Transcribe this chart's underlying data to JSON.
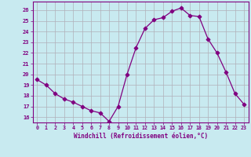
{
  "x": [
    0,
    1,
    2,
    3,
    4,
    5,
    6,
    7,
    8,
    9,
    10,
    11,
    12,
    13,
    14,
    15,
    16,
    17,
    18,
    19,
    20,
    21,
    22,
    23
  ],
  "y": [
    19.5,
    19.0,
    18.2,
    17.7,
    17.4,
    17.0,
    16.6,
    16.4,
    15.6,
    17.0,
    20.0,
    22.5,
    24.3,
    25.1,
    25.3,
    25.9,
    26.2,
    25.5,
    25.4,
    23.3,
    22.0,
    20.2,
    18.2,
    17.2
  ],
  "line_color": "#800080",
  "marker": "D",
  "bg_color": "#c8eaf0",
  "grid_color": "#b0b0b8",
  "xlabel": "Windchill (Refroidissement éolien,°C)",
  "ylabel_ticks": [
    16,
    17,
    18,
    19,
    20,
    21,
    22,
    23,
    24,
    25,
    26
  ],
  "ylim": [
    15.5,
    26.8
  ],
  "xlim": [
    -0.5,
    23.5
  ],
  "figsize": [
    3.2,
    2.0
  ],
  "dpi": 100
}
